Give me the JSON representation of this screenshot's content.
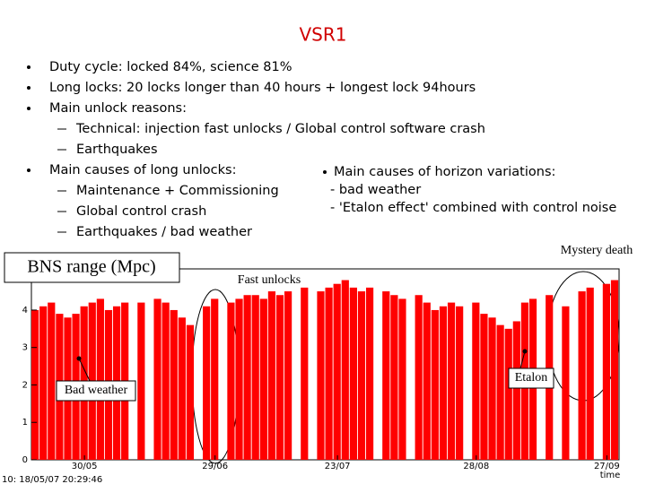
{
  "title": "VSR1",
  "bullets": [
    {
      "text": "Duty cycle: locked 84%, science 81%",
      "sub": []
    },
    {
      "text": "Long locks: 20 locks longer than 40 hours  + longest lock 94hours",
      "sub": []
    },
    {
      "text": "Main unlock reasons:",
      "sub": [
        "Technical: injection fast unlocks / Global control software crash",
        "Earthquakes"
      ]
    },
    {
      "text": "Main causes of long unlocks:",
      "sub": [
        "Maintenance + Commissioning",
        "Global control crash",
        "Earthquakes / bad weather"
      ]
    }
  ],
  "side_bullet": {
    "text": "Main causes of horizon variations:",
    "sub": [
      "- bad weather",
      "- 'Etalon effect' combined with control noise"
    ]
  },
  "chart_data": {
    "type": "bar",
    "title": "BNS range (Mpc)",
    "x_label": "time",
    "footer": "10: 18/05/07 20:29:46",
    "annotations": [
      "Fast unlocks",
      "Mystery death",
      "Bad weather",
      "Etalon"
    ],
    "categories": [
      null,
      null,
      null,
      null,
      null,
      null,
      "30/05",
      null,
      null,
      null,
      null,
      null,
      null,
      null,
      null,
      null,
      null,
      null,
      null,
      null,
      null,
      null,
      "29/06",
      null,
      null,
      null,
      null,
      null,
      null,
      null,
      null,
      null,
      null,
      null,
      null,
      null,
      null,
      "23/07",
      null,
      null,
      null,
      null,
      null,
      null,
      null,
      null,
      null,
      null,
      null,
      null,
      null,
      null,
      null,
      null,
      "28/08",
      null,
      null,
      null,
      null,
      null,
      null,
      null,
      null,
      null,
      null,
      null,
      null,
      null,
      null,
      null,
      "27/09",
      null
    ],
    "values": [
      4.0,
      4.1,
      4.2,
      3.9,
      3.8,
      3.9,
      4.1,
      4.2,
      4.3,
      4.0,
      4.1,
      4.2,
      0,
      4.2,
      0,
      4.3,
      4.2,
      4.0,
      3.8,
      3.6,
      0,
      4.1,
      4.3,
      0,
      4.2,
      4.3,
      4.4,
      4.4,
      4.3,
      4.5,
      4.4,
      4.5,
      0,
      4.6,
      0,
      4.5,
      4.6,
      4.7,
      4.8,
      4.6,
      4.5,
      4.6,
      0,
      4.5,
      4.4,
      4.3,
      0,
      4.4,
      4.2,
      4.0,
      4.1,
      4.2,
      4.1,
      0,
      4.2,
      3.9,
      3.8,
      3.6,
      3.5,
      3.7,
      4.2,
      4.3,
      0,
      4.4,
      0,
      4.1,
      0,
      4.5,
      4.6,
      0,
      4.7,
      4.8
    ],
    "color": "#ff0000",
    "ylim": [
      0,
      5.1
    ],
    "yticks": [
      0,
      1,
      2,
      3,
      4
    ],
    "grid": false
  }
}
